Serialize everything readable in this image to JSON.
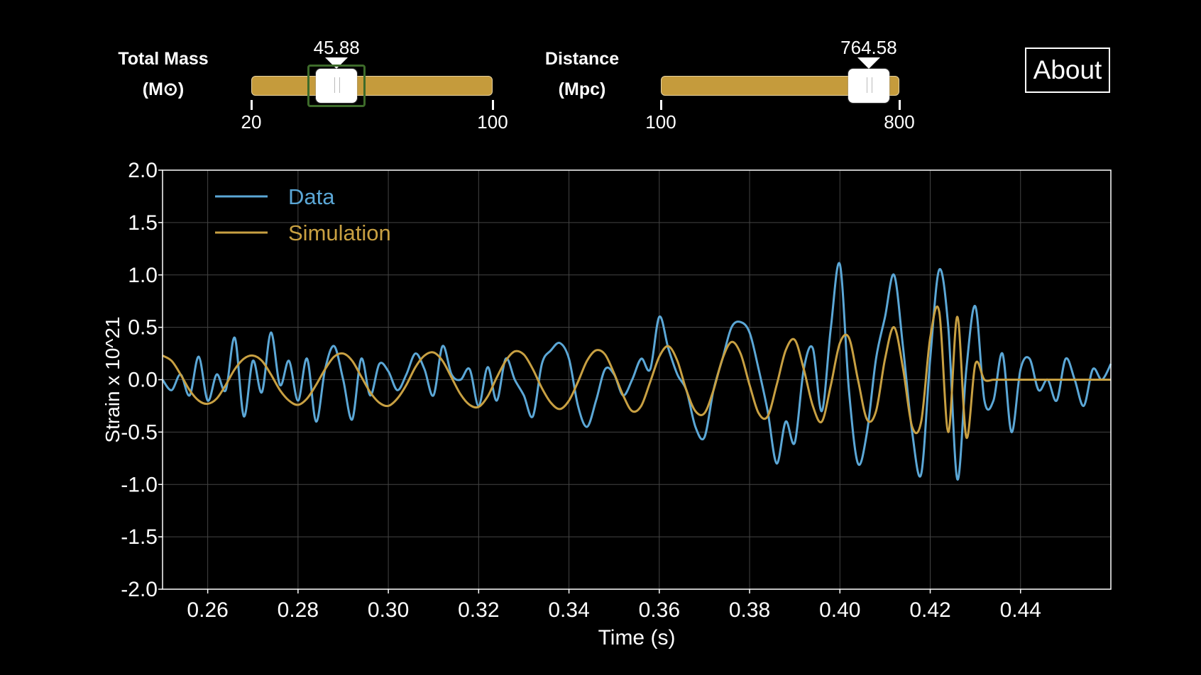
{
  "controls": {
    "mass": {
      "label_line1": "Total Mass",
      "label_line2": "(M⊙)",
      "value": 45.88,
      "value_text": "45.88",
      "min": 20,
      "max": 100,
      "min_label": "20",
      "max_label": "100"
    },
    "distance": {
      "label_line1": "Distance",
      "label_line2": "(Mpc)",
      "value": 764.58,
      "value_text": "764.58",
      "min": 100,
      "max": 800,
      "min_label": "100",
      "max_label": "800"
    },
    "about_label": "About"
  },
  "colors": {
    "data": "#5ba7d6",
    "simulation": "#c8a042",
    "slider_track": "#c59b3c",
    "background": "#000000",
    "grid": "#444444"
  },
  "chart_data": {
    "type": "line",
    "title": "",
    "xlabel": "Time (s)",
    "ylabel": "Strain x 10^21",
    "xlim": [
      0.25,
      0.46
    ],
    "ylim": [
      -2.0,
      2.0
    ],
    "xticks": [
      0.26,
      0.28,
      0.3,
      0.32,
      0.34,
      0.36,
      0.38,
      0.4,
      0.42,
      0.44
    ],
    "xtick_labels": [
      "0.26",
      "0.28",
      "0.30",
      "0.32",
      "0.34",
      "0.36",
      "0.38",
      "0.40",
      "0.42",
      "0.44"
    ],
    "yticks": [
      -2.0,
      -1.5,
      -1.0,
      -0.5,
      0.0,
      0.5,
      1.0,
      1.5,
      2.0
    ],
    "ytick_labels": [
      "-2.0",
      "-1.5",
      "-1.0",
      "-0.5",
      "0.0",
      "0.5",
      "1.0",
      "1.5",
      "2.0"
    ],
    "grid": true,
    "legend_position": "top-left",
    "series": [
      {
        "name": "Data",
        "x": [
          0.25,
          0.252,
          0.254,
          0.256,
          0.258,
          0.26,
          0.262,
          0.264,
          0.266,
          0.268,
          0.27,
          0.272,
          0.274,
          0.276,
          0.278,
          0.28,
          0.282,
          0.284,
          0.286,
          0.288,
          0.29,
          0.292,
          0.294,
          0.296,
          0.298,
          0.3,
          0.302,
          0.304,
          0.306,
          0.308,
          0.31,
          0.312,
          0.314,
          0.316,
          0.318,
          0.32,
          0.322,
          0.324,
          0.326,
          0.328,
          0.33,
          0.332,
          0.334,
          0.336,
          0.338,
          0.34,
          0.342,
          0.344,
          0.346,
          0.348,
          0.35,
          0.352,
          0.354,
          0.356,
          0.358,
          0.36,
          0.362,
          0.364,
          0.366,
          0.368,
          0.37,
          0.372,
          0.374,
          0.376,
          0.378,
          0.38,
          0.382,
          0.384,
          0.386,
          0.388,
          0.39,
          0.392,
          0.394,
          0.396,
          0.398,
          0.4,
          0.402,
          0.404,
          0.406,
          0.408,
          0.41,
          0.412,
          0.414,
          0.416,
          0.418,
          0.42,
          0.422,
          0.424,
          0.426,
          0.428,
          0.43,
          0.432,
          0.434,
          0.436,
          0.438,
          0.44,
          0.442,
          0.444,
          0.446,
          0.448,
          0.45,
          0.452,
          0.454,
          0.456,
          0.458,
          0.46
        ],
        "y": [
          0.0,
          -0.1,
          0.05,
          -0.15,
          0.22,
          -0.2,
          0.05,
          -0.1,
          0.4,
          -0.35,
          0.18,
          -0.12,
          0.45,
          -0.05,
          0.18,
          -0.2,
          0.2,
          -0.4,
          0.1,
          0.32,
          0.0,
          -0.38,
          0.2,
          -0.15,
          0.15,
          0.08,
          -0.1,
          0.05,
          0.25,
          0.1,
          -0.15,
          0.32,
          0.05,
          0.0,
          0.1,
          -0.25,
          0.12,
          -0.2,
          0.2,
          0.0,
          -0.15,
          -0.35,
          0.15,
          0.28,
          0.35,
          0.2,
          -0.25,
          -0.45,
          -0.2,
          0.1,
          0.05,
          -0.15,
          0.0,
          0.2,
          0.1,
          0.6,
          0.3,
          0.05,
          -0.1,
          -0.45,
          -0.55,
          -0.1,
          0.2,
          0.5,
          0.55,
          0.45,
          0.1,
          -0.3,
          -0.8,
          -0.4,
          -0.6,
          0.1,
          0.3,
          -0.3,
          0.5,
          1.1,
          -0.1,
          -0.8,
          -0.5,
          0.2,
          0.6,
          1.0,
          0.3,
          -0.5,
          -0.9,
          0.2,
          1.05,
          0.5,
          -0.95,
          0.1,
          0.7,
          -0.2,
          -0.2,
          0.25,
          -0.5,
          0.1,
          0.2,
          -0.1,
          0.0,
          -0.2,
          0.2,
          0.0,
          -0.25,
          0.1,
          0.0,
          0.15
        ],
        "color": "#5ba7d6"
      },
      {
        "name": "Simulation",
        "x": [
          0.25,
          0.252,
          0.254,
          0.256,
          0.258,
          0.26,
          0.262,
          0.264,
          0.266,
          0.268,
          0.27,
          0.272,
          0.274,
          0.276,
          0.278,
          0.28,
          0.282,
          0.284,
          0.286,
          0.288,
          0.29,
          0.292,
          0.294,
          0.296,
          0.298,
          0.3,
          0.302,
          0.304,
          0.306,
          0.308,
          0.31,
          0.312,
          0.314,
          0.316,
          0.318,
          0.32,
          0.322,
          0.324,
          0.326,
          0.328,
          0.33,
          0.332,
          0.334,
          0.336,
          0.338,
          0.34,
          0.342,
          0.344,
          0.346,
          0.348,
          0.35,
          0.352,
          0.354,
          0.356,
          0.358,
          0.36,
          0.362,
          0.364,
          0.366,
          0.368,
          0.37,
          0.372,
          0.374,
          0.376,
          0.378,
          0.38,
          0.382,
          0.384,
          0.386,
          0.388,
          0.39,
          0.392,
          0.394,
          0.396,
          0.398,
          0.4,
          0.402,
          0.404,
          0.406,
          0.408,
          0.41,
          0.412,
          0.414,
          0.416,
          0.418,
          0.42,
          0.422,
          0.424,
          0.426,
          0.428,
          0.43,
          0.432,
          0.434,
          0.436,
          0.438,
          0.44,
          0.442,
          0.444,
          0.446,
          0.448,
          0.45,
          0.452,
          0.454,
          0.456,
          0.458,
          0.46
        ],
        "y": [
          0.23,
          0.18,
          0.05,
          -0.1,
          -0.2,
          -0.23,
          -0.18,
          -0.05,
          0.1,
          0.2,
          0.23,
          0.18,
          0.05,
          -0.1,
          -0.2,
          -0.24,
          -0.18,
          -0.05,
          0.1,
          0.22,
          0.25,
          0.18,
          0.03,
          -0.12,
          -0.22,
          -0.25,
          -0.18,
          -0.05,
          0.12,
          0.23,
          0.26,
          0.18,
          0.02,
          -0.14,
          -0.24,
          -0.26,
          -0.16,
          0.02,
          0.18,
          0.27,
          0.24,
          0.1,
          -0.08,
          -0.22,
          -0.28,
          -0.2,
          -0.02,
          0.18,
          0.28,
          0.24,
          0.06,
          -0.15,
          -0.3,
          -0.25,
          -0.02,
          0.22,
          0.32,
          0.18,
          -0.1,
          -0.3,
          -0.32,
          -0.1,
          0.2,
          0.36,
          0.25,
          -0.05,
          -0.32,
          -0.35,
          -0.05,
          0.28,
          0.38,
          0.1,
          -0.25,
          -0.4,
          -0.05,
          0.35,
          0.4,
          0.0,
          -0.38,
          -0.3,
          0.2,
          0.5,
          0.1,
          -0.45,
          -0.4,
          0.4,
          0.65,
          -0.5,
          0.6,
          -0.55,
          0.15,
          0.0,
          0.0,
          0.0,
          0.0,
          0.0,
          0.0,
          0.0,
          0.0,
          0.0,
          0.0,
          0.0,
          0.0,
          0.0,
          0.0,
          0.0
        ],
        "color": "#c8a042"
      }
    ]
  }
}
